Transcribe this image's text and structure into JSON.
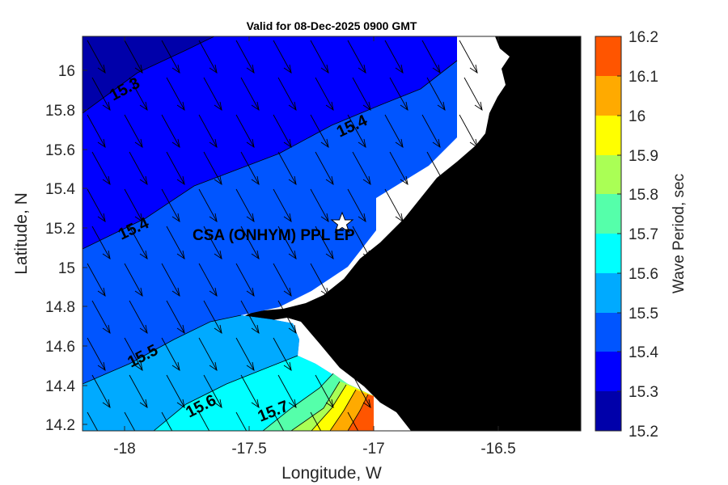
{
  "title": "Valid for 08-Dec-2025 0900 GMT",
  "xlabel": "Longitude, W",
  "ylabel": "Latitude, N",
  "x_ticks": [
    "-18",
    "-17.5",
    "-17",
    "-16.5"
  ],
  "y_ticks": [
    "16",
    "15.8",
    "15.6",
    "15.4",
    "15.2",
    "15",
    "14.8",
    "14.6",
    "14.4",
    "14.2"
  ],
  "colorbar": {
    "label": "Wave Period, sec",
    "ticks": [
      "16.2",
      "16.1",
      "16",
      "15.9",
      "15.8",
      "15.7",
      "15.6",
      "15.5",
      "15.4",
      "15.3",
      "15.2"
    ],
    "colors": [
      "#ff5500",
      "#ffaa00",
      "#ffff00",
      "#aaff55",
      "#55ffaa",
      "#00ffff",
      "#00aaff",
      "#0055ff",
      "#0000ff",
      "#0000aa"
    ]
  },
  "contour_labels": [
    "15.3",
    "15.4",
    "15.4",
    "15.5",
    "15.6",
    "15.7"
  ],
  "station": {
    "label": "CSA (ONHYM) PPL EP",
    "marker": "star-icon"
  },
  "land_color": "#000000",
  "chart_data": {
    "type": "heatmap",
    "title": "Valid for 08-Dec-2025 0900 GMT",
    "xlabel": "Longitude, W",
    "ylabel": "Latitude, N",
    "xlim": [
      -18.18,
      -16.18
    ],
    "ylim": [
      14.17,
      16.17
    ],
    "variable": "Wave Period, sec",
    "color_range": [
      15.2,
      16.2
    ],
    "contour_levels": [
      15.3,
      15.4,
      15.5,
      15.6,
      15.7
    ],
    "station": {
      "name": "CSA (ONHYM) PPL EP",
      "lon": -17.12,
      "lat": 15.23
    },
    "vectors": "wave direction arrows pointing south-east"
  }
}
